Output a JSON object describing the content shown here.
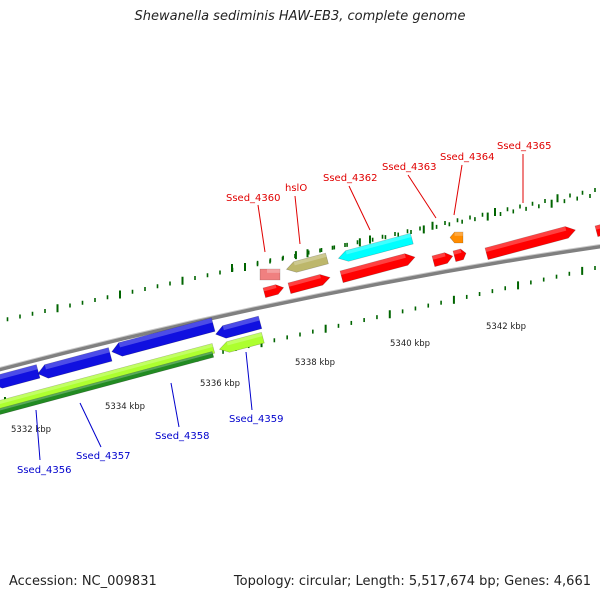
{
  "title": "Shewanella sediminis HAW-EB3, complete genome",
  "footer": {
    "accession": "Accession: NC_009831",
    "topology": "Topology: circular; Length: 5,517,674 bp; Genes: 4,661"
  },
  "scale_labels": [
    "5332 kbp",
    "5334 kbp",
    "5336 kbp",
    "5338 kbp",
    "5340 kbp",
    "5342 kbp"
  ],
  "top_gene_labels": [
    "Ssed_4360",
    "hslO",
    "Ssed_4362",
    "Ssed_4363",
    "Ssed_4364",
    "Ssed_4365"
  ],
  "bottom_gene_labels": [
    "Ssed_4356",
    "Ssed_4357",
    "Ssed_4358",
    "Ssed_4359"
  ],
  "colors": {
    "forward_gene": "#ff0000",
    "reverse_gene": "#1010e0",
    "pink_feature": "#f08080",
    "khaki_feature": "#bdb76b",
    "cyan_feature": "#00ffff",
    "orange_feature": "#ff8c00",
    "green_feature": "#228b22",
    "lime_feature": "#adff2f",
    "tick": "#006400",
    "backbone": "#808080"
  }
}
